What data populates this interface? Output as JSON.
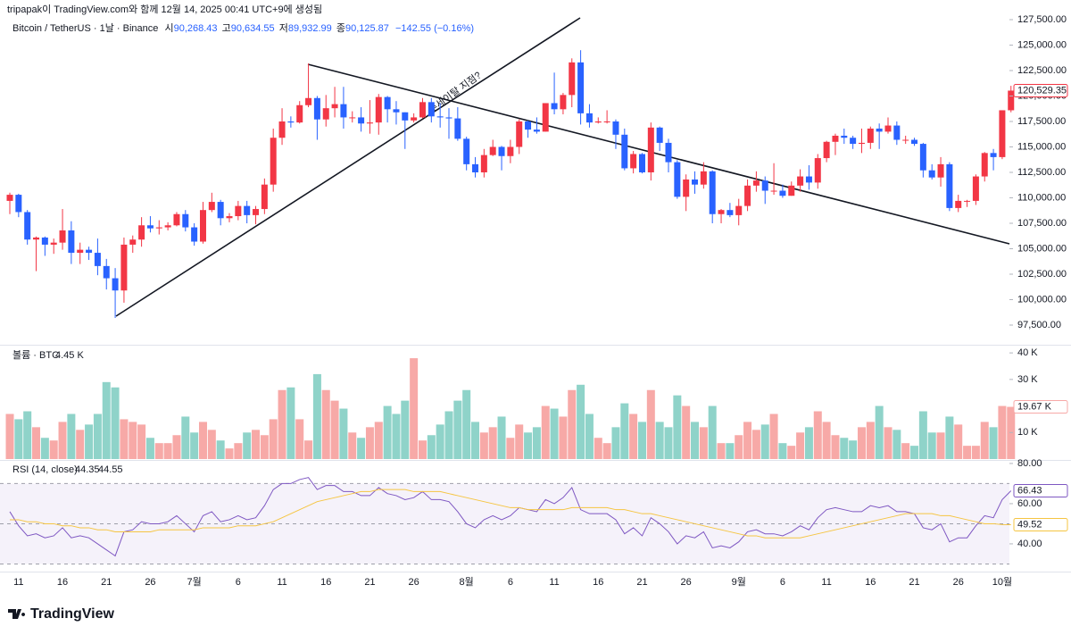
{
  "header": {
    "credit": "tripapak이 TradingView.com와 함께 12월 14, 2025 00:41 UTC+9에 생성됨",
    "symbol": "Bitcoin / TetherUS · 1날 · Binance",
    "ohlc": [
      {
        "label": "시",
        "value": "90,268.43"
      },
      {
        "label": "고",
        "value": "90,634.55"
      },
      {
        "label": "저",
        "value": "89,932.99"
      },
      {
        "label": "종",
        "value": "90,125.87"
      }
    ],
    "change": "−142.55 (−0.16%)"
  },
  "chart_data": [
    {
      "type": "candlestick",
      "categories": [
        null,
        "11",
        null,
        null,
        null,
        null,
        "16",
        null,
        null,
        null,
        null,
        "21",
        null,
        null,
        null,
        null,
        "26",
        null,
        null,
        null,
        null,
        "7월",
        null,
        null,
        null,
        null,
        "6",
        null,
        null,
        null,
        null,
        "11",
        null,
        null,
        null,
        null,
        "16",
        null,
        null,
        null,
        null,
        "21",
        null,
        null,
        null,
        null,
        "26",
        null,
        null,
        null,
        null,
        null,
        "8월",
        null,
        null,
        null,
        null,
        "6",
        null,
        null,
        null,
        null,
        "11",
        null,
        null,
        null,
        null,
        "16",
        null,
        null,
        null,
        null,
        "21",
        null,
        null,
        null,
        null,
        "26",
        null,
        null,
        null,
        null,
        null,
        "9월",
        null,
        null,
        null,
        null,
        "6",
        null,
        null,
        null,
        null,
        "11",
        null,
        null,
        null,
        null,
        "16",
        null,
        null,
        null,
        null,
        "21",
        null,
        null,
        null,
        null,
        "26",
        null,
        null,
        null,
        null,
        "10월",
        null
      ],
      "open": [
        109700,
        110300,
        108600,
        105900,
        106100,
        105400,
        105600,
        106800,
        104600,
        104900,
        104600,
        103300,
        102100,
        100900,
        105400,
        105900,
        107300,
        107000,
        107100,
        107300,
        108400,
        107100,
        105700,
        108800,
        109600,
        108000,
        108200,
        109200,
        108300,
        108900,
        111300,
        115900,
        117500,
        117400,
        119100,
        119800,
        117700,
        118800,
        119200,
        117900,
        117900,
        117300,
        117400,
        119900,
        118700,
        118400,
        117600,
        117900,
        119400,
        118000,
        117900,
        117800,
        115800,
        113300,
        112500,
        114200,
        115000,
        114100,
        115000,
        117500,
        116700,
        116500,
        119300,
        118700,
        120100,
        123300,
        118300,
        117400,
        117500,
        117500,
        116200,
        112900,
        114300,
        112500,
        116900,
        115400,
        113500,
        110100,
        111800,
        111300,
        112600,
        108400,
        108800,
        108300,
        109200,
        111200,
        111700,
        110700,
        110700,
        110200,
        111200,
        112100,
        111500,
        113900,
        115500,
        116100,
        115900,
        115300,
        115400,
        116800,
        116500,
        117100,
        115700,
        115700,
        115300,
        112700,
        112000,
        113300,
        109000,
        109700,
        109700,
        112100,
        114400,
        114000,
        118600
      ],
      "high": [
        110500,
        110400,
        108800,
        106200,
        106200,
        106000,
        108900,
        107700,
        105600,
        105200,
        106000,
        104000,
        103100,
        106100,
        106300,
        108100,
        108200,
        107800,
        107600,
        108600,
        108800,
        107500,
        109600,
        110500,
        109800,
        108500,
        109700,
        109700,
        109200,
        111900,
        116800,
        118800,
        118000,
        119500,
        123200,
        120000,
        120100,
        120900,
        120900,
        118500,
        118900,
        119600,
        120200,
        120000,
        119500,
        118400,
        118300,
        119800,
        119800,
        119300,
        118800,
        118900,
        116000,
        114000,
        114800,
        115700,
        115100,
        115700,
        117700,
        117600,
        117900,
        119300,
        122300,
        120300,
        123700,
        124500,
        119200,
        117900,
        118600,
        117700,
        116800,
        114600,
        114400,
        117400,
        117000,
        115800,
        113700,
        112300,
        112600,
        113500,
        112700,
        108900,
        109500,
        109900,
        111800,
        112600,
        112100,
        113400,
        111300,
        111600,
        112800,
        113200,
        114300,
        115600,
        116300,
        116800,
        116100,
        116800,
        117000,
        117300,
        117900,
        117500,
        116100,
        115900,
        115400,
        113300,
        114000,
        113500,
        110300,
        109800,
        112300,
        114500,
        114800,
        118600,
        121000
      ],
      "low": [
        108400,
        108100,
        105400,
        102800,
        104300,
        104500,
        104900,
        103500,
        103500,
        103900,
        102400,
        101000,
        98200,
        99700,
        104600,
        105200,
        106600,
        106400,
        106800,
        107200,
        106700,
        105300,
        105500,
        108600,
        107300,
        107600,
        107800,
        107500,
        107400,
        108400,
        110600,
        115200,
        116900,
        117300,
        118900,
        115700,
        117000,
        117900,
        116800,
        117400,
        116500,
        116300,
        116200,
        117400,
        117200,
        114800,
        117400,
        117800,
        117400,
        116900,
        115800,
        115600,
        112700,
        112000,
        112000,
        114100,
        112700,
        113400,
        114300,
        115900,
        116300,
        116500,
        118200,
        118200,
        118900,
        117200,
        116900,
        117300,
        117300,
        114800,
        112700,
        112400,
        112400,
        111700,
        114600,
        112500,
        109900,
        108700,
        110400,
        110900,
        107500,
        107500,
        108100,
        107300,
        108700,
        110600,
        109400,
        110300,
        110000,
        110200,
        110600,
        110800,
        110900,
        113500,
        114200,
        115300,
        114800,
        114400,
        114800,
        114800,
        116300,
        115200,
        115300,
        115100,
        112000,
        111800,
        111100,
        108700,
        108600,
        109100,
        109300,
        111600,
        112700,
        113800,
        118400
      ],
      "close": [
        110300,
        108600,
        105900,
        106100,
        105400,
        105600,
        106800,
        104600,
        104900,
        104600,
        103300,
        102100,
        100900,
        105400,
        105900,
        107300,
        107000,
        107100,
        107300,
        108400,
        107100,
        105700,
        108800,
        109600,
        108000,
        108200,
        109200,
        108300,
        108900,
        111300,
        115900,
        117500,
        117400,
        119100,
        119800,
        117700,
        118800,
        119200,
        117900,
        117900,
        117300,
        117400,
        119900,
        118700,
        118400,
        117600,
        117900,
        119400,
        118000,
        117900,
        117800,
        115800,
        113300,
        112500,
        114200,
        115000,
        114100,
        115000,
        117500,
        116700,
        116500,
        119300,
        118700,
        120100,
        123300,
        118300,
        117400,
        117500,
        117500,
        116200,
        112900,
        114300,
        112500,
        116900,
        115400,
        113500,
        110100,
        111800,
        111300,
        112600,
        108400,
        108800,
        108300,
        109200,
        111200,
        111700,
        110700,
        110700,
        110200,
        111200,
        112100,
        111500,
        113900,
        115500,
        116100,
        115900,
        115300,
        115400,
        116800,
        116500,
        117100,
        115700,
        115700,
        115300,
        112700,
        112000,
        113300,
        109000,
        109700,
        109700,
        112100,
        114400,
        114000,
        118600,
        120529.35
      ],
      "up_color": "#f23645",
      "down_color": "#2962ff",
      "ylim": [
        95570,
        129430
      ],
      "yticks": [
        {
          "value": 97500,
          "label": "97,500.00"
        },
        {
          "value": 100000,
          "label": "100,000.00"
        },
        {
          "value": 102500,
          "label": "102,500.00"
        },
        {
          "value": 105000,
          "label": "105,000.00"
        },
        {
          "value": 107500,
          "label": "107,500.00"
        },
        {
          "value": 110000,
          "label": "110,000.00"
        },
        {
          "value": 112500,
          "label": "112,500.00"
        },
        {
          "value": 115000,
          "label": "115,000.00"
        },
        {
          "value": 117500,
          "label": "117,500.00"
        },
        {
          "value": 120000,
          "label": "120,000.00"
        },
        {
          "value": 122500,
          "label": "122,500.00"
        },
        {
          "value": 125000,
          "label": "125,000.00"
        },
        {
          "value": 127500,
          "label": "127,500.00"
        }
      ],
      "last_label": "120,529.35",
      "annotations": [
        "추세이탈 지점?"
      ]
    },
    {
      "type": "bar",
      "title": "볼륨 · BTC",
      "header_value": "4.45 K",
      "values": [
        17,
        15,
        18,
        12,
        8,
        7,
        14,
        17,
        11,
        13,
        17,
        29,
        27,
        15,
        14,
        13,
        8,
        6,
        6,
        9,
        16,
        10,
        14,
        11,
        7,
        4,
        6,
        10,
        11,
        9,
        15,
        26,
        27,
        15,
        7,
        32,
        26,
        22,
        19,
        10,
        8,
        12,
        14,
        20,
        17,
        22,
        38,
        7,
        9,
        13,
        18,
        22,
        26,
        14,
        10,
        12,
        16,
        8,
        13,
        10,
        12,
        20,
        19,
        16,
        26,
        28,
        17,
        8,
        6,
        12,
        21,
        17,
        14,
        26,
        14,
        12,
        24,
        20,
        14,
        12,
        20,
        6,
        6,
        9,
        14,
        11,
        13,
        17,
        6,
        5,
        10,
        12,
        18,
        14,
        9,
        8,
        7,
        12,
        14,
        20,
        12,
        11,
        6,
        5,
        18,
        10,
        10,
        16,
        13,
        5,
        5,
        14,
        12,
        20,
        19.67
      ],
      "up_color": "#f7a9a7",
      "down_color": "#8fd3c9",
      "ylim": [
        0,
        42.4
      ],
      "yticks": [
        {
          "value": 40,
          "label": "40 K"
        },
        {
          "value": 30,
          "label": "30 K"
        },
        {
          "value": 10,
          "label": "10 K"
        }
      ],
      "last_label": "19.67 K"
    },
    {
      "type": "line",
      "title": "RSI (14, close)",
      "series": [
        {
          "color": "#7e57c2",
          "header_value": "44.35",
          "values": [
            56,
            49,
            44,
            45,
            43,
            44,
            48,
            43,
            44,
            43,
            40,
            37,
            34,
            46,
            47,
            51,
            50,
            50,
            51,
            54,
            50,
            46,
            54,
            56,
            51,
            52,
            54,
            52,
            53,
            59,
            67,
            70,
            70,
            72,
            73,
            67,
            69,
            69,
            66,
            66,
            64,
            64,
            68,
            65,
            64,
            62,
            63,
            66,
            62,
            62,
            61,
            56,
            50,
            48,
            52,
            54,
            52,
            54,
            58,
            57,
            56,
            62,
            60,
            63,
            68,
            57,
            55,
            55,
            55,
            52,
            45,
            48,
            44,
            53,
            50,
            46,
            40,
            44,
            43,
            46,
            38,
            39,
            38,
            41,
            46,
            47,
            45,
            45,
            44,
            46,
            49,
            47,
            53,
            57,
            58,
            57,
            56,
            56,
            59,
            58,
            59,
            56,
            56,
            55,
            48,
            47,
            50,
            41,
            43,
            43,
            49,
            54,
            53,
            62,
            66.43
          ]
        },
        {
          "color": "#f5c542",
          "header_value": "44.55",
          "values": [
            52,
            52,
            51,
            51,
            50,
            50,
            49,
            49,
            48,
            48,
            47,
            47,
            46,
            46,
            46,
            46,
            46,
            47,
            47,
            47,
            47,
            47,
            48,
            48,
            48,
            48,
            49,
            49,
            49,
            50,
            51,
            53,
            55,
            57,
            59,
            61,
            62,
            63,
            64,
            65,
            66,
            66,
            67,
            67,
            67,
            67,
            66,
            66,
            66,
            66,
            65,
            64,
            63,
            62,
            61,
            60,
            59,
            58,
            58,
            57,
            57,
            57,
            57,
            57,
            58,
            58,
            58,
            58,
            58,
            57,
            57,
            56,
            55,
            55,
            54,
            53,
            52,
            51,
            50,
            49,
            48,
            47,
            46,
            45,
            44,
            44,
            43,
            43,
            43,
            43,
            43,
            44,
            45,
            46,
            47,
            48,
            49,
            50,
            51,
            52,
            53,
            54,
            55,
            55,
            55,
            55,
            54,
            54,
            53,
            52,
            51,
            50,
            50,
            49.6,
            49.52
          ]
        }
      ],
      "bands": [
        70,
        50,
        30
      ],
      "band_color": "#7e57c2",
      "ylim": [
        26.2,
        81.3
      ],
      "yticks": [
        {
          "value": 80,
          "label": "80.00"
        },
        {
          "value": 60,
          "label": "60.00"
        },
        {
          "value": 40,
          "label": "40.00"
        }
      ]
    }
  ],
  "footer": {
    "brand": "TradingView"
  }
}
